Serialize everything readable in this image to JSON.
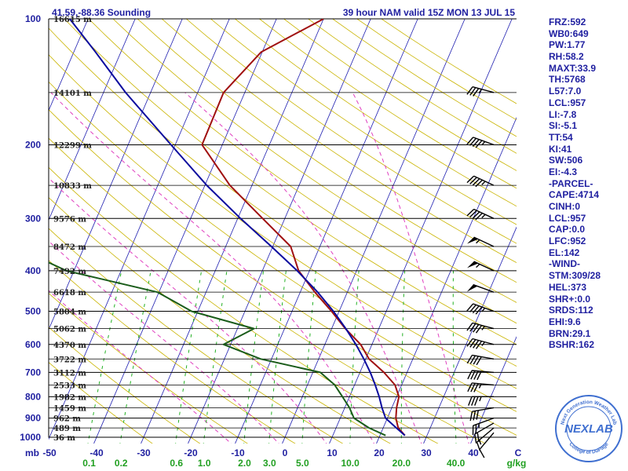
{
  "header": {
    "location": "41.59,-88.36 Sounding",
    "model_valid": "39 hour NAM valid 15Z MON 13 JUL 15"
  },
  "chart_data": {
    "type": "skew-t log-p sounding",
    "pressure_unit": "mb",
    "temperature_unit": "C",
    "mixing_ratio_unit": "g/kg",
    "pressure_range": [
      1000,
      100
    ],
    "pressure_ticks": [
      100,
      200,
      300,
      400,
      500,
      600,
      700,
      800,
      900,
      1000
    ],
    "temperature_ticks": [
      -50,
      -40,
      -30,
      -20,
      -10,
      0,
      10,
      20,
      30,
      40
    ],
    "temperature_tick_labels": [
      "-50",
      "-40",
      "-30",
      "-20",
      "-10",
      "0",
      "10",
      "20",
      "30",
      "40"
    ],
    "mixing_ratio_labels": [
      "0.1",
      "0.2",
      "0.6",
      "1.0",
      "2.0",
      "3.0",
      "5.0",
      "10.0",
      "20.0",
      "40.0"
    ],
    "height_levels": [
      {
        "p": 100,
        "label": "16615 m"
      },
      {
        "p": 150,
        "label": "14101 m"
      },
      {
        "p": 200,
        "label": "12299 m"
      },
      {
        "p": 250,
        "label": "10833 m"
      },
      {
        "p": 300,
        "label": "9576 m"
      },
      {
        "p": 350,
        "label": "8472 m"
      },
      {
        "p": 400,
        "label": "7492 m"
      },
      {
        "p": 450,
        "label": "6618 m"
      },
      {
        "p": 500,
        "label": "5804 m"
      },
      {
        "p": 550,
        "label": "5062 m"
      },
      {
        "p": 600,
        "label": "4370 m"
      },
      {
        "p": 650,
        "label": "3722 m"
      },
      {
        "p": 700,
        "label": "3112 m"
      },
      {
        "p": 750,
        "label": "2533 m"
      },
      {
        "p": 800,
        "label": "1982 m"
      },
      {
        "p": 850,
        "label": "1459 m"
      },
      {
        "p": 900,
        "label": "962 m"
      },
      {
        "p": 950,
        "label": "489 m"
      },
      {
        "p": 1000,
        "label": "36 m"
      }
    ],
    "series": [
      {
        "key": "temperature",
        "color": "#a01010",
        "points": [
          [
            990,
            25.3
          ],
          [
            950,
            23.2
          ],
          [
            900,
            21.8
          ],
          [
            850,
            21.0
          ],
          [
            800,
            20.5
          ],
          [
            750,
            18.6
          ],
          [
            700,
            15.1
          ],
          [
            650,
            10.7
          ],
          [
            600,
            7.6
          ],
          [
            550,
            2.9
          ],
          [
            500,
            -1.6
          ],
          [
            450,
            -6.9
          ],
          [
            400,
            -12.3
          ],
          [
            350,
            -16.2
          ],
          [
            300,
            -24.7
          ],
          [
            250,
            -34.7
          ],
          [
            200,
            -44.3
          ],
          [
            150,
            -44.5
          ],
          [
            120,
            -40.2
          ],
          [
            100,
            -30.0
          ]
        ]
      },
      {
        "key": "dewpoint",
        "color": "#1a5c1a",
        "points": [
          [
            990,
            21.2
          ],
          [
            950,
            17.0
          ],
          [
            900,
            12.9
          ],
          [
            850,
            11.0
          ],
          [
            800,
            8.5
          ],
          [
            750,
            5.8
          ],
          [
            700,
            1.6
          ],
          [
            650,
            -12.3
          ],
          [
            600,
            -21.5
          ],
          [
            550,
            -16.5
          ],
          [
            500,
            -31.3
          ],
          [
            450,
            -40.3
          ],
          [
            400,
            -61.6
          ],
          [
            350,
            -74.9
          ],
          [
            300,
            -71.4
          ]
        ]
      },
      {
        "key": "parcel",
        "color": "#0b0b9e",
        "points": [
          [
            990,
            25.3
          ],
          [
            950,
            22.8
          ],
          [
            900,
            19.6
          ],
          [
            850,
            17.9
          ],
          [
            800,
            16.3
          ],
          [
            750,
            14.4
          ],
          [
            700,
            12.2
          ],
          [
            650,
            9.6
          ],
          [
            600,
            6.6
          ],
          [
            550,
            3.0
          ],
          [
            500,
            -1.2
          ],
          [
            450,
            -6.3
          ],
          [
            400,
            -12.6
          ],
          [
            350,
            -20.3
          ],
          [
            300,
            -29.4
          ],
          [
            250,
            -39.6
          ],
          [
            200,
            -50.9
          ],
          [
            150,
            -65.3
          ],
          [
            120,
            -75.4
          ],
          [
            100,
            -83.9
          ]
        ]
      }
    ],
    "wind_barbs": [
      {
        "p": 975,
        "dir": 220,
        "speed": 10
      },
      {
        "p": 950,
        "dir": 230,
        "speed": 15
      },
      {
        "p": 925,
        "dir": 240,
        "speed": 20
      },
      {
        "p": 900,
        "dir": 250,
        "speed": 25
      },
      {
        "p": 850,
        "dir": 260,
        "speed": 30
      },
      {
        "p": 800,
        "dir": 270,
        "speed": 35
      },
      {
        "p": 750,
        "dir": 275,
        "speed": 35
      },
      {
        "p": 700,
        "dir": 275,
        "speed": 40
      },
      {
        "p": 650,
        "dir": 280,
        "speed": 40
      },
      {
        "p": 600,
        "dir": 285,
        "speed": 45
      },
      {
        "p": 550,
        "dir": 285,
        "speed": 45
      },
      {
        "p": 500,
        "dir": 290,
        "speed": 45
      },
      {
        "p": 450,
        "dir": 290,
        "speed": 50
      },
      {
        "p": 400,
        "dir": 295,
        "speed": 55
      },
      {
        "p": 350,
        "dir": 295,
        "speed": 55
      },
      {
        "p": 300,
        "dir": 295,
        "speed": 45
      },
      {
        "p": 250,
        "dir": 295,
        "speed": 45
      },
      {
        "p": 200,
        "dir": 290,
        "speed": 45
      },
      {
        "p": 150,
        "dir": 285,
        "speed": 35
      }
    ]
  },
  "indices": [
    "FRZ:592",
    "WB0:649",
    "PW:1.77",
    "RH:58.2",
    "MAXT:33.9",
    "TH:5768",
    "L57:7.0",
    "LCL:957",
    "LI:-7.8",
    "SI:-5.1",
    "TT:54",
    "KI:41",
    "SW:506",
    "EI:-4.3",
    "-PARCEL-",
    "CAPE:4714",
    "CINH:0",
    "LCL:957",
    "CAP:0.0",
    "LFC:952",
    "EL:142",
    "-WIND-",
    "STM:309/28",
    "HEL:373",
    "SHR+:0.0",
    "SRDS:112",
    "EHI:9.6",
    "BRN:29.1",
    "BSHR:162"
  ],
  "logo": {
    "text": "NEXLAB",
    "ring_text": "Next Generation Weather Lab",
    "ring_text_bottom": "College of DuPage",
    "color": "#3f6fd0"
  },
  "colors": {
    "isobar": "#000000",
    "isotherm": "#1f1fb0",
    "dry_adiabat": "#c9b400",
    "moist_adiabat": "#e040c0",
    "mixing_ratio": "#22b022"
  }
}
